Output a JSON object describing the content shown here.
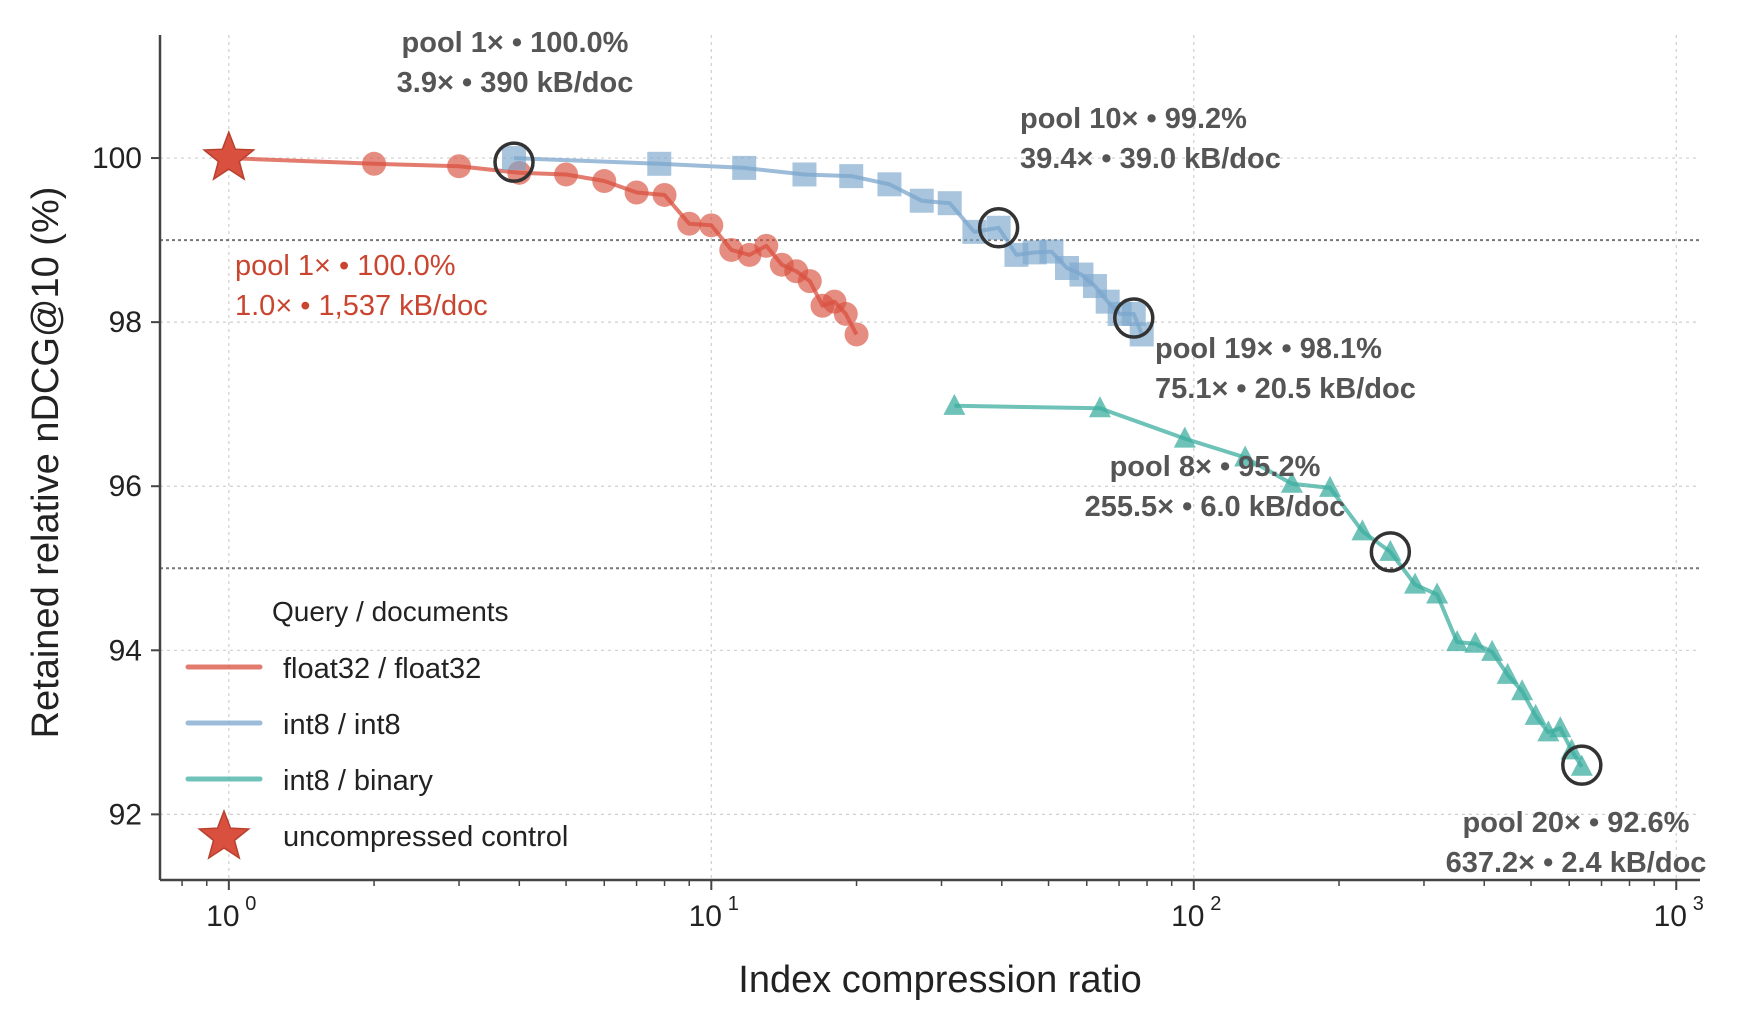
{
  "chart_data": {
    "type": "scatter",
    "xlabel": "Index compression ratio",
    "ylabel": "Retained relative nDCG@10 (%)",
    "xscale": "log",
    "xlim": [
      0.72,
      1120
    ],
    "ylim": [
      91.2,
      101.5
    ],
    "x_ticks": [
      {
        "value": 1,
        "base": "10",
        "exp": "0"
      },
      {
        "value": 10,
        "base": "10",
        "exp": "1"
      },
      {
        "value": 100,
        "base": "10",
        "exp": "2"
      },
      {
        "value": 1000,
        "base": "10",
        "exp": "3"
      }
    ],
    "y_ticks": [
      {
        "value": 92,
        "label": "92"
      },
      {
        "value": 94,
        "label": "94"
      },
      {
        "value": 96,
        "label": "96"
      },
      {
        "value": 98,
        "label": "98"
      },
      {
        "value": 100,
        "label": "100"
      }
    ],
    "grid": true,
    "reference_lines_y": [
      99,
      95
    ],
    "legend": {
      "title": "Query / documents",
      "position": "lower-left",
      "entries": [
        {
          "label": "float32 / float32",
          "series": "float32 / float32"
        },
        {
          "label": "int8 / int8",
          "series": "int8 / int8"
        },
        {
          "label": "int8 / binary",
          "series": "int8 / binary"
        },
        {
          "label": "uncompressed control",
          "series": "uncompressed control"
        }
      ]
    },
    "series": [
      {
        "name": "float32 / float32",
        "color": "#d9503f",
        "marker": "circle",
        "points": [
          [
            1,
            100.0
          ],
          [
            2,
            99.93
          ],
          [
            3,
            99.9
          ],
          [
            4,
            99.82
          ],
          [
            5,
            99.8
          ],
          [
            6,
            99.72
          ],
          [
            7,
            99.58
          ],
          [
            8,
            99.55
          ],
          [
            9,
            99.2
          ],
          [
            10,
            99.18
          ],
          [
            11,
            98.88
          ],
          [
            12,
            98.82
          ],
          [
            13,
            98.93
          ],
          [
            14,
            98.7
          ],
          [
            15,
            98.62
          ],
          [
            16,
            98.5
          ],
          [
            17,
            98.2
          ],
          [
            18,
            98.25
          ],
          [
            19,
            98.1
          ],
          [
            20,
            97.85
          ]
        ]
      },
      {
        "name": "int8 / int8",
        "color": "#7ba6cc",
        "marker": "square",
        "points": [
          [
            3.9,
            100.0
          ],
          [
            7.8,
            99.93
          ],
          [
            11.7,
            99.88
          ],
          [
            15.6,
            99.8
          ],
          [
            19.5,
            99.78
          ],
          [
            23.4,
            99.68
          ],
          [
            27.3,
            99.48
          ],
          [
            31.2,
            99.45
          ],
          [
            35.1,
            99.1
          ],
          [
            39.4,
            99.15
          ],
          [
            42.9,
            98.82
          ],
          [
            46.8,
            98.85
          ],
          [
            50.7,
            98.86
          ],
          [
            54.6,
            98.66
          ],
          [
            58.5,
            98.58
          ],
          [
            62.4,
            98.44
          ],
          [
            66.3,
            98.25
          ],
          [
            70.2,
            98.1
          ],
          [
            75.1,
            98.1
          ],
          [
            78.0,
            97.85
          ]
        ]
      },
      {
        "name": "int8 / binary",
        "color": "#3dada0",
        "marker": "triangle",
        "points": [
          [
            31.9,
            96.98
          ],
          [
            63.9,
            96.95
          ],
          [
            95.8,
            96.58
          ],
          [
            127.8,
            96.35
          ],
          [
            159.7,
            96.03
          ],
          [
            191.6,
            95.98
          ],
          [
            223.6,
            95.45
          ],
          [
            255.5,
            95.2
          ],
          [
            287.5,
            94.8
          ],
          [
            319.4,
            94.68
          ],
          [
            351.4,
            94.1
          ],
          [
            383.3,
            94.08
          ],
          [
            415.3,
            93.98
          ],
          [
            447.2,
            93.7
          ],
          [
            479.2,
            93.5
          ],
          [
            511.1,
            93.2
          ],
          [
            543.1,
            93.0
          ],
          [
            575.0,
            93.05
          ],
          [
            607.0,
            92.78
          ],
          [
            637.2,
            92.58
          ]
        ]
      },
      {
        "name": "uncompressed control",
        "color": "#d9503f",
        "marker": "star",
        "points": [
          [
            1,
            100.0
          ]
        ]
      }
    ],
    "annotations": [
      {
        "x": 3.9,
        "y": 99.95,
        "circled": true,
        "line1": "pool 1× • 100.0%",
        "line2": "3.9× • 390 kB/doc",
        "color": "#555555"
      },
      {
        "x": 39.4,
        "y": 99.15,
        "circled": true,
        "line1": "pool 10× • 99.2%",
        "line2": "39.4× • 39.0 kB/doc",
        "color": "#555555"
      },
      {
        "x": 75.1,
        "y": 98.05,
        "circled": true,
        "line1": "pool 19× • 98.1%",
        "line2": "75.1× • 20.5 kB/doc",
        "color": "#555555"
      },
      {
        "x": 255.5,
        "y": 95.2,
        "circled": true,
        "line1": "pool 8× • 95.2%",
        "line2": "255.5× • 6.0 kB/doc",
        "color": "#555555"
      },
      {
        "x": 637.2,
        "y": 92.6,
        "circled": true,
        "line1": "pool 20× • 92.6%",
        "line2": "637.2× • 2.4 kB/doc",
        "color": "#555555"
      },
      {
        "x": 1,
        "y": 100.0,
        "circled": false,
        "line1": "pool 1× • 100.0%",
        "line2": "1.0× • 1,537 kB/doc",
        "color": "#c9452f"
      }
    ]
  }
}
